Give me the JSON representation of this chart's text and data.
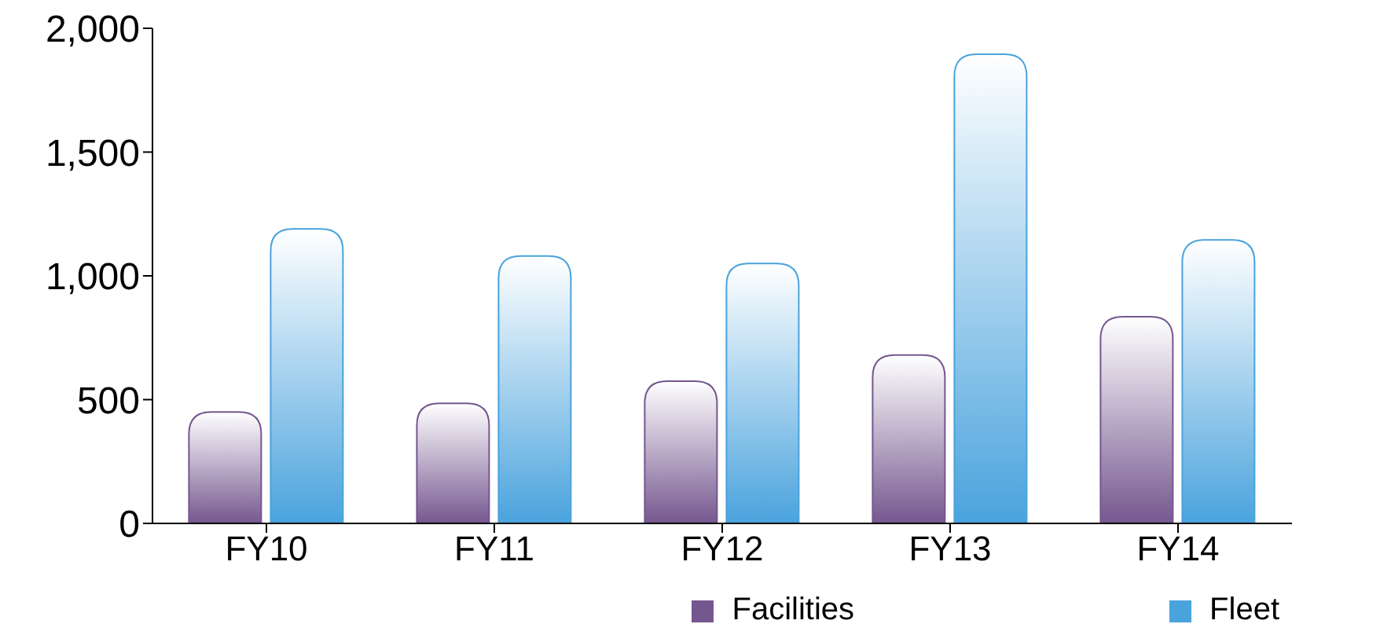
{
  "chart_data": {
    "type": "bar",
    "categories": [
      "FY10",
      "FY11",
      "FY12",
      "FY13",
      "FY14"
    ],
    "series": [
      {
        "name": "Facilities",
        "color": "#75578f",
        "values": [
          450,
          485,
          575,
          680,
          835
        ]
      },
      {
        "name": "Fleet",
        "color": "#4aa3dd",
        "values": [
          1190,
          1080,
          1050,
          1895,
          1145
        ]
      }
    ],
    "ylim": [
      0,
      2000
    ],
    "yticks": [
      0,
      500,
      {
        "value": 1000,
        "label": "1,000"
      },
      {
        "value": 1500,
        "label": "1,500"
      },
      {
        "value": 2000,
        "label": "2,000"
      }
    ],
    "grid": false,
    "legend": "bottom right"
  }
}
